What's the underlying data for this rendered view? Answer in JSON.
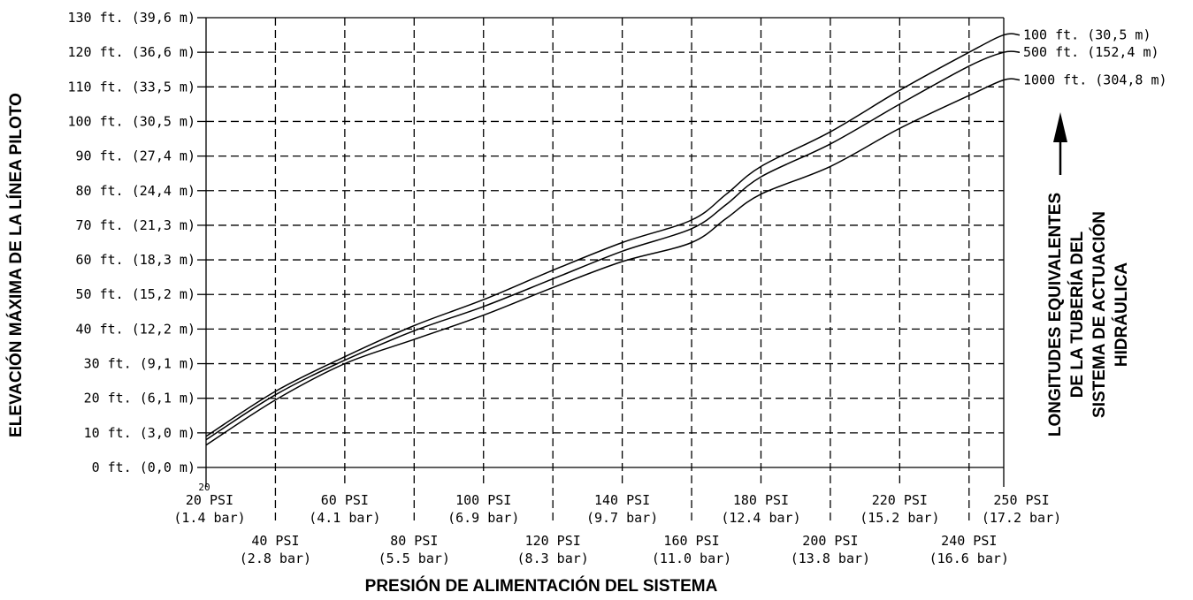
{
  "chart_data": {
    "type": "line",
    "xlabel": "PRESIÓN DE ALIMENTACIÓN DEL SISTEMA",
    "ylabel": "ELEVACIÓN MÁXIMA DE LA LÍNEA PILOTO",
    "right_label_lines": [
      "LONGITUDES EQUIVALENTES",
      "DE LA TUBERÍA DEL",
      "SISTEMA DE ACTUACIÓN",
      "HIDRÁULICA"
    ],
    "xlim": [
      20,
      250
    ],
    "ylim": [
      0,
      130
    ],
    "grid": true,
    "corner_mark": "20",
    "x_ticks": [
      {
        "value": 20,
        "psi": "20 PSI",
        "bar": "(1.4 bar)",
        "row": 1
      },
      {
        "value": 40,
        "psi": "40 PSI",
        "bar": "(2.8 bar)",
        "row": 2
      },
      {
        "value": 60,
        "psi": "60 PSI",
        "bar": "(4.1 bar)",
        "row": 1
      },
      {
        "value": 80,
        "psi": "80 PSI",
        "bar": "(5.5 bar)",
        "row": 2
      },
      {
        "value": 100,
        "psi": "100 PSI",
        "bar": "(6.9 bar)",
        "row": 1
      },
      {
        "value": 120,
        "psi": "120 PSI",
        "bar": "(8.3 bar)",
        "row": 2
      },
      {
        "value": 140,
        "psi": "140 PSI",
        "bar": "(9.7 bar)",
        "row": 1
      },
      {
        "value": 160,
        "psi": "160 PSI",
        "bar": "(11.0 bar)",
        "row": 2
      },
      {
        "value": 180,
        "psi": "180 PSI",
        "bar": "(12.4 bar)",
        "row": 1
      },
      {
        "value": 200,
        "psi": "200 PSI",
        "bar": "(13.8 bar)",
        "row": 2
      },
      {
        "value": 220,
        "psi": "220 PSI",
        "bar": "(15.2 bar)",
        "row": 1
      },
      {
        "value": 240,
        "psi": "240 PSI",
        "bar": "(16.6 bar)",
        "row": 2
      },
      {
        "value": 250,
        "psi": "250 PSI",
        "bar": "(17.2 bar)",
        "row": 1
      }
    ],
    "y_ticks": [
      {
        "value": 130,
        "label": "130 ft. (39,6 m)"
      },
      {
        "value": 120,
        "label": "120 ft. (36,6 m)"
      },
      {
        "value": 110,
        "label": "110 ft. (33,5 m)"
      },
      {
        "value": 100,
        "label": "100 ft. (30,5 m)"
      },
      {
        "value": 90,
        "label": "90 ft. (27,4 m)"
      },
      {
        "value": 80,
        "label": "80 ft. (24,4 m)"
      },
      {
        "value": 70,
        "label": "70 ft. (21,3 m)"
      },
      {
        "value": 60,
        "label": "60 ft. (18,3 m)"
      },
      {
        "value": 50,
        "label": "50 ft. (15,2 m)"
      },
      {
        "value": 40,
        "label": "40 ft. (12,2 m)"
      },
      {
        "value": 30,
        "label": "30 ft. (9,1 m)"
      },
      {
        "value": 20,
        "label": "20 ft. (6,1 m)"
      },
      {
        "value": 10,
        "label": "10 ft. (3,0 m)"
      },
      {
        "value": 0,
        "label": "0 ft. (0,0 m)"
      }
    ],
    "series": [
      {
        "name": "100 ft. (30,5 m)",
        "x": [
          20,
          40,
          60,
          80,
          100,
          120,
          140,
          160,
          170,
          180,
          200,
          220,
          240,
          250
        ],
        "y": [
          9,
          22,
          32,
          41,
          48.5,
          57,
          65,
          71.5,
          79,
          87,
          97,
          109,
          120,
          125
        ]
      },
      {
        "name": "500 ft. (152,4 m)",
        "x": [
          20,
          40,
          60,
          80,
          100,
          120,
          140,
          160,
          170,
          180,
          200,
          220,
          240,
          250
        ],
        "y": [
          8,
          21,
          31,
          39.5,
          46.5,
          54.5,
          62.5,
          69,
          76,
          84,
          93.5,
          105,
          116,
          120
        ]
      },
      {
        "name": "1000 ft. (304,8 m)",
        "x": [
          20,
          40,
          60,
          80,
          100,
          120,
          140,
          160,
          170,
          180,
          200,
          220,
          240,
          250
        ],
        "y": [
          6.5,
          19.5,
          30,
          37,
          44,
          52,
          59.5,
          65,
          72,
          79,
          87,
          98,
          107.5,
          112
        ]
      }
    ]
  }
}
